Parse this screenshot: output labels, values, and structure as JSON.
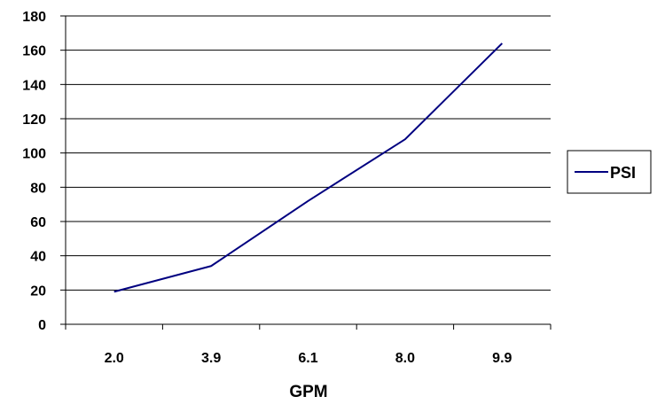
{
  "chart_data": {
    "type": "line",
    "categories": [
      "2.0",
      "3.9",
      "6.1",
      "8.0",
      "9.9"
    ],
    "series": [
      {
        "name": "PSI",
        "values": [
          19,
          34,
          72,
          108,
          164
        ],
        "color": "#000080"
      }
    ],
    "xlabel": "GPM",
    "ylabel": "",
    "title": "",
    "ylim": [
      0,
      180
    ],
    "yticks": [
      "0",
      "20",
      "40",
      "60",
      "80",
      "100",
      "120",
      "140",
      "160",
      "180"
    ],
    "grid": "horizontal",
    "legend_position": "right"
  }
}
